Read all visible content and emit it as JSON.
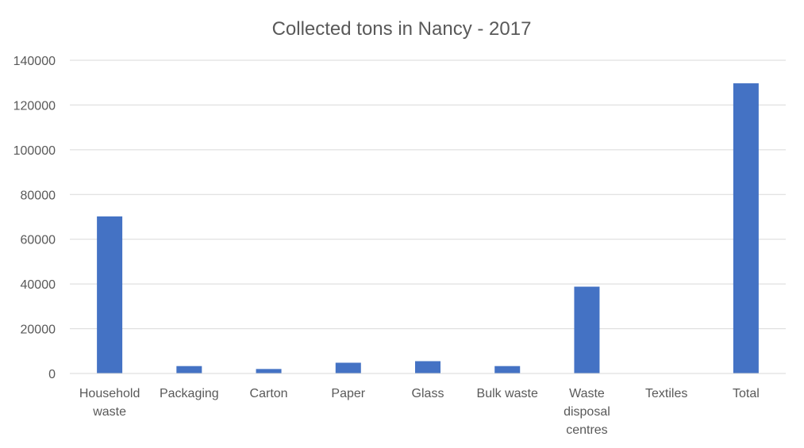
{
  "chart_data": {
    "type": "bar",
    "title": "Collected tons in Nancy - 2017",
    "xlabel": "",
    "ylabel": "",
    "categories": [
      [
        "Household",
        "waste"
      ],
      [
        "Packaging"
      ],
      [
        "Carton"
      ],
      [
        "Paper"
      ],
      [
        "Glass"
      ],
      [
        "Bulk waste"
      ],
      [
        "Waste",
        "disposal",
        "centres"
      ],
      [
        "Textiles"
      ],
      [
        "Total"
      ]
    ],
    "series": [
      {
        "values": [
          70200,
          3300,
          2000,
          4800,
          5500,
          3300,
          38800,
          0,
          129700
        ],
        "color": "#4472c4"
      }
    ],
    "ylim": [
      0,
      140000
    ],
    "yticks": [
      0,
      20000,
      40000,
      60000,
      80000,
      100000,
      120000,
      140000
    ],
    "ytick_labels": [
      "0",
      "20000",
      "40000",
      "60000",
      "80000",
      "100000",
      "120000",
      "140000"
    ],
    "grid": true,
    "gridline_color": "#d9d9d9",
    "legend": "none"
  }
}
